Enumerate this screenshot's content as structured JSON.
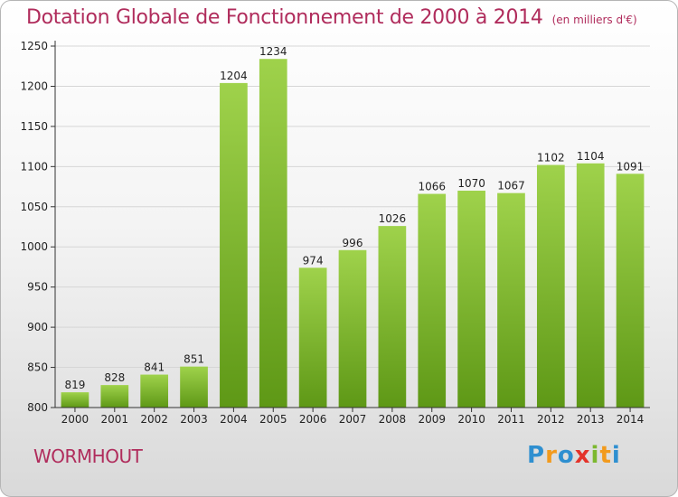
{
  "header": {
    "title": "Dotation Globale de Fonctionnement de 2000 à 2014",
    "unit": "(en milliers d'€)"
  },
  "footer": {
    "commune": "WORMHOUT",
    "brand": "Proxiti",
    "brand_letters": [
      {
        "ch": "P",
        "color": "#2e8fd0"
      },
      {
        "ch": "r",
        "color": "#f29a1d"
      },
      {
        "ch": "o",
        "color": "#2e8fd0"
      },
      {
        "ch": "x",
        "color": "#e4332a"
      },
      {
        "ch": "i",
        "color": "#7cb82f"
      },
      {
        "ch": "t",
        "color": "#f29a1d"
      },
      {
        "ch": "i",
        "color": "#2e8fd0"
      }
    ]
  },
  "colors": {
    "bar_top": "#9fd24b",
    "bar_bottom": "#5e9816",
    "title": "#b02c5c",
    "grid": "#d6d6d6",
    "axis": "#333333"
  },
  "chart_data": {
    "type": "bar",
    "title": "Dotation Globale de Fonctionnement de 2000 à 2014",
    "subtitle": "(en milliers d'€)",
    "xlabel": "",
    "ylabel": "",
    "categories": [
      "2000",
      "2001",
      "2002",
      "2003",
      "2004",
      "2005",
      "2006",
      "2007",
      "2008",
      "2009",
      "2010",
      "2011",
      "2012",
      "2013",
      "2014"
    ],
    "values": [
      819,
      828,
      841,
      851,
      1204,
      1234,
      974,
      996,
      1026,
      1066,
      1070,
      1067,
      1102,
      1104,
      1091
    ],
    "data_labels": [
      "819",
      "828",
      "841",
      "851",
      "1204",
      "1234",
      "974",
      "996",
      "1026",
      "1066",
      "1070",
      "1067",
      "1102",
      "1104",
      "1091"
    ],
    "ylim": [
      800,
      1250
    ],
    "yticks": [
      800,
      850,
      900,
      950,
      1000,
      1050,
      1100,
      1150,
      1200,
      1250
    ],
    "grid": true,
    "legend": "none"
  }
}
